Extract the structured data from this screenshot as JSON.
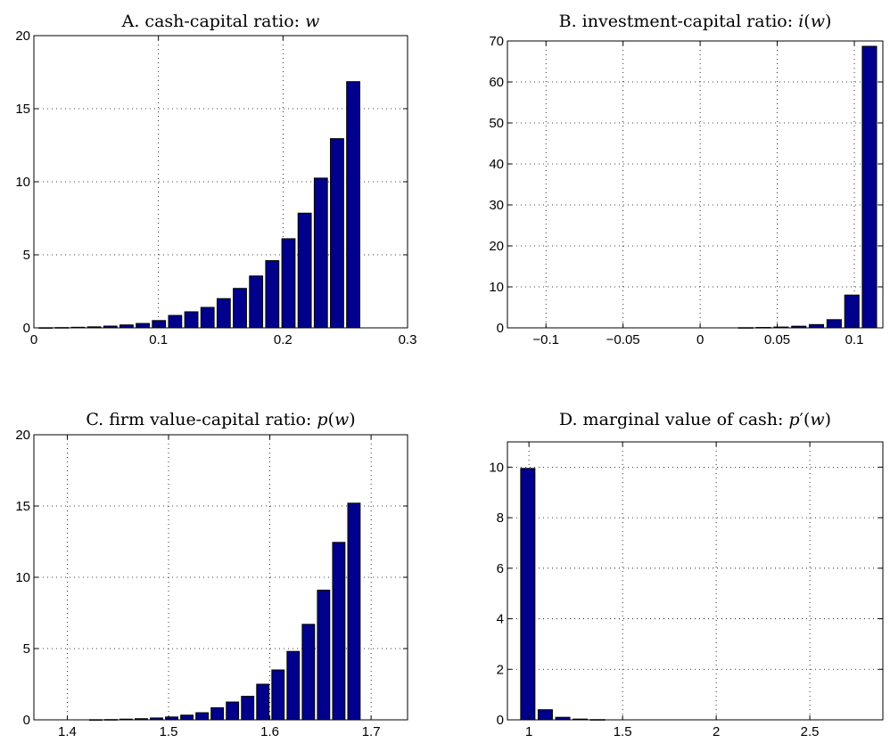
{
  "chart_data": [
    {
      "type": "bar",
      "panel": "A",
      "title": "A.  cash-capital ratio: w",
      "title_parts": [
        {
          "t": "A.  cash-capital ratio: ",
          "i": false
        },
        {
          "t": "w",
          "i": true
        }
      ],
      "xlim": [
        0,
        0.3
      ],
      "ylim": [
        0,
        20
      ],
      "xticks": [
        0,
        0.1,
        0.2,
        0.3
      ],
      "xtick_labels": [
        "0",
        "0.1",
        "0.2",
        "0.3"
      ],
      "yticks": [
        0,
        5,
        10,
        15,
        20
      ],
      "ytick_labels": [
        "0",
        "5",
        "10",
        "15",
        "20"
      ],
      "bar_width": 0.0106,
      "x": [
        0.0094,
        0.0224,
        0.0354,
        0.0484,
        0.0614,
        0.0744,
        0.0874,
        0.1004,
        0.1134,
        0.1264,
        0.1394,
        0.1524,
        0.1654,
        0.1784,
        0.1914,
        0.2044,
        0.2174,
        0.2304,
        0.2434,
        0.2564,
        0.2694
      ],
      "values": [
        0.01,
        0.02,
        0.04,
        0.07,
        0.12,
        0.2,
        0.3,
        0.5,
        0.85,
        1.1,
        1.4,
        2.0,
        2.7,
        3.55,
        4.6,
        6.1,
        7.85,
        10.25,
        12.95,
        16.85,
        0
      ]
    },
    {
      "type": "bar",
      "panel": "B",
      "title": "B.  investment-capital ratio: i(w)",
      "title_parts": [
        {
          "t": "B.  investment-capital ratio: ",
          "i": false
        },
        {
          "t": "i",
          "i": true
        },
        {
          "t": "(",
          "i": false
        },
        {
          "t": "w",
          "i": true
        },
        {
          "t": ")",
          "i": false
        }
      ],
      "xlim": [
        -0.125,
        0.1185
      ],
      "ylim": [
        0,
        70
      ],
      "xticks": [
        -0.1,
        -0.05,
        0,
        0.05,
        0.1
      ],
      "xtick_labels": [
        "−0.1",
        "−0.05",
        "0",
        "0.05",
        "0.1"
      ],
      "yticks": [
        0,
        10,
        20,
        30,
        40,
        50,
        60,
        70
      ],
      "ytick_labels": [
        "0",
        "10",
        "20",
        "30",
        "40",
        "50",
        "60",
        "70"
      ],
      "bar_width": 0.0093,
      "x": [
        -0.1195,
        -0.108,
        -0.0966,
        -0.0851,
        -0.0736,
        -0.0622,
        -0.0507,
        -0.0392,
        -0.0278,
        -0.0163,
        -0.0048,
        0.0066,
        0.0181,
        0.0296,
        0.041,
        0.0525,
        0.064,
        0.0754,
        0.0869,
        0.0984,
        0.1098
      ],
      "values": [
        0,
        0,
        0,
        0,
        0,
        0,
        0,
        0,
        0,
        0,
        0,
        0,
        0,
        0.05,
        0.1,
        0.2,
        0.4,
        0.8,
        2.0,
        8.0,
        68.7
      ]
    },
    {
      "type": "bar",
      "panel": "C",
      "title": "C.  firm value-capital ratio: p(w)",
      "title_parts": [
        {
          "t": "C.  firm value-capital ratio: ",
          "i": false
        },
        {
          "t": "p",
          "i": true
        },
        {
          "t": "(",
          "i": false
        },
        {
          "t": "w",
          "i": true
        },
        {
          "t": ")",
          "i": false
        }
      ],
      "xlim": [
        1.367,
        1.736
      ],
      "ylim": [
        0,
        20
      ],
      "xticks": [
        1.4,
        1.5,
        1.6,
        1.7
      ],
      "xtick_labels": [
        "1.4",
        "1.5",
        "1.6",
        "1.7"
      ],
      "yticks": [
        0,
        5,
        10,
        15,
        20
      ],
      "ytick_labels": [
        "0",
        "5",
        "10",
        "15",
        "20"
      ],
      "bar_width": 0.0122,
      "x": [
        1.3831,
        1.3981,
        1.4131,
        1.4281,
        1.4431,
        1.4581,
        1.4731,
        1.4881,
        1.5031,
        1.5181,
        1.5331,
        1.5481,
        1.5631,
        1.5781,
        1.5931,
        1.6081,
        1.6231,
        1.6381,
        1.6531,
        1.6681,
        1.6831,
        1.6981
      ],
      "values": [
        0,
        0,
        0,
        0.01,
        0.02,
        0.05,
        0.08,
        0.13,
        0.2,
        0.33,
        0.5,
        0.85,
        1.25,
        1.65,
        2.5,
        3.5,
        4.8,
        6.7,
        9.1,
        12.45,
        15.2,
        0
      ]
    },
    {
      "type": "bar",
      "panel": "D",
      "title": "D.  marginal value of cash: p′(w)",
      "title_parts": [
        {
          "t": "D.  marginal value of cash: ",
          "i": false
        },
        {
          "t": "p",
          "i": true
        },
        {
          "t": "′(",
          "i": false
        },
        {
          "t": "w",
          "i": true
        },
        {
          "t": ")",
          "i": false
        }
      ],
      "xlim": [
        0.885,
        2.89
      ],
      "ylim": [
        0,
        11
      ],
      "xticks": [
        1,
        1.5,
        2,
        2.5
      ],
      "xtick_labels": [
        "1",
        "1.5",
        "2",
        "2.5"
      ],
      "yticks": [
        0,
        2,
        4,
        6,
        8,
        10
      ],
      "ytick_labels": [
        "0",
        "2",
        "4",
        "6",
        "8",
        "10"
      ],
      "bar_width": 0.076,
      "x": [
        0.9938,
        1.0871,
        1.1804,
        1.2737,
        1.367,
        1.4603,
        1.5536,
        1.6469,
        1.7402,
        1.8335,
        1.9268,
        2.0201,
        2.1134,
        2.2067,
        2.3,
        2.3933,
        2.4866,
        2.5799,
        2.6732,
        2.7665,
        2.8598
      ],
      "values": [
        9.95,
        0.4,
        0.1,
        0.03,
        0.01,
        0,
        0,
        0,
        0,
        0,
        0,
        0,
        0,
        0,
        0,
        0,
        0,
        0,
        0,
        0,
        0
      ]
    }
  ]
}
